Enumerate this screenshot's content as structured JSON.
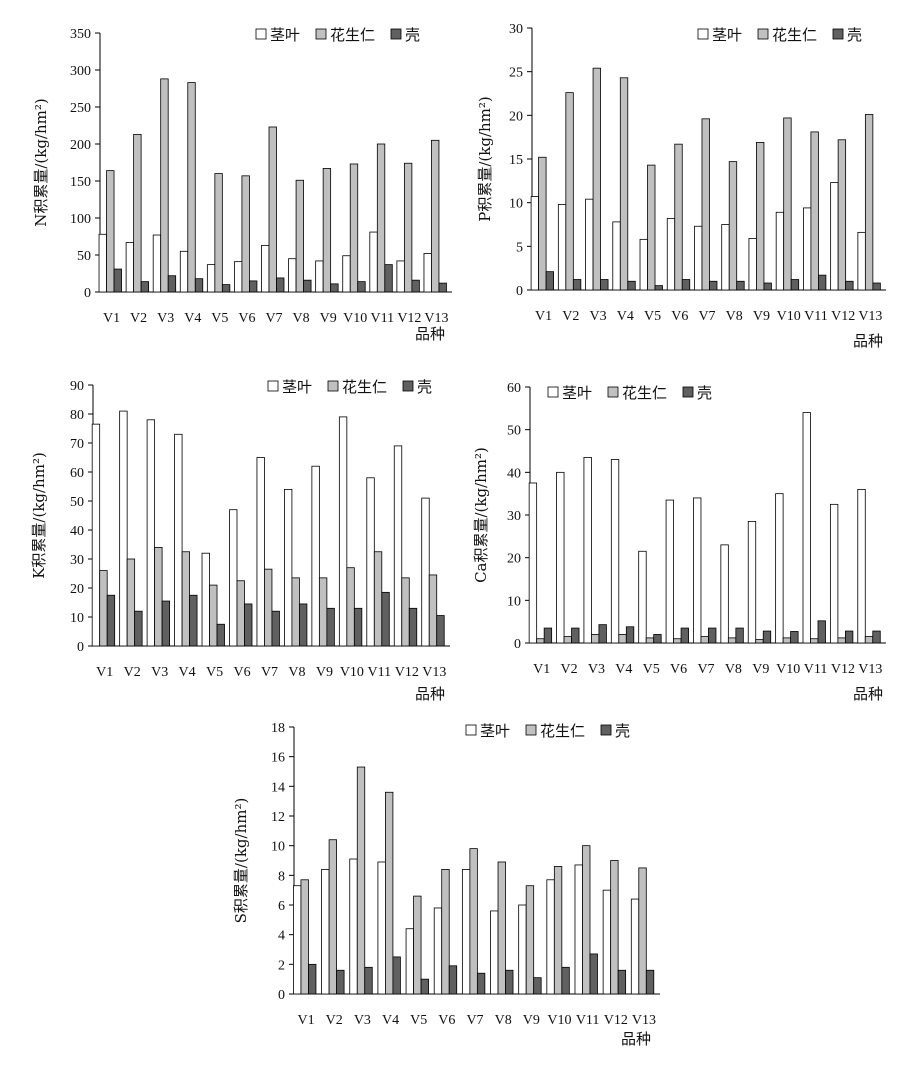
{
  "chart_data": [
    {
      "type": "bar",
      "ylabel": "N积累量/(kg/hm²)",
      "xlabel": "品种",
      "ylim": [
        0,
        350
      ],
      "yticks": [
        0,
        50,
        100,
        150,
        200,
        250,
        300,
        350
      ],
      "categories": [
        "V1",
        "V2",
        "V3",
        "V4",
        "V5",
        "V6",
        "V7",
        "V8",
        "V9",
        "V10",
        "V11",
        "V12",
        "V13"
      ],
      "legend_position": "top-right",
      "series": [
        {
          "name": "茎叶",
          "color": "#ffffff",
          "values": [
            78,
            67,
            77,
            55,
            37,
            41,
            63,
            45,
            42,
            49,
            81,
            42,
            52
          ]
        },
        {
          "name": "花生仁",
          "color": "#c0c0c0",
          "values": [
            164,
            213,
            288,
            283,
            160,
            157,
            223,
            151,
            167,
            173,
            200,
            174,
            205
          ]
        },
        {
          "name": "壳",
          "color": "#606060",
          "values": [
            31,
            14,
            22,
            18,
            10,
            15,
            19,
            16,
            11,
            14,
            37,
            16,
            12
          ]
        }
      ]
    },
    {
      "type": "bar",
      "ylabel": "P积累量/(kg/hm²)",
      "xlabel": "品种",
      "ylim": [
        0,
        30
      ],
      "yticks": [
        0,
        5,
        10,
        15,
        20,
        25,
        30
      ],
      "categories": [
        "V1",
        "V2",
        "V3",
        "V4",
        "V5",
        "V6",
        "V7",
        "V8",
        "V9",
        "V10",
        "V11",
        "V12",
        "V13"
      ],
      "legend_position": "top-right",
      "series": [
        {
          "name": "茎叶",
          "color": "#ffffff",
          "values": [
            10.7,
            9.8,
            10.4,
            7.8,
            5.8,
            8.2,
            7.3,
            7.5,
            5.9,
            8.9,
            9.4,
            12.3,
            6.6
          ]
        },
        {
          "name": "花生仁",
          "color": "#c0c0c0",
          "values": [
            15.2,
            22.6,
            25.4,
            24.3,
            14.3,
            16.7,
            19.6,
            14.7,
            16.9,
            19.7,
            18.1,
            17.2,
            20.1
          ]
        },
        {
          "name": "壳",
          "color": "#606060",
          "values": [
            2.1,
            1.2,
            1.2,
            1.0,
            0.5,
            1.2,
            1.0,
            1.0,
            0.8,
            1.2,
            1.7,
            1.0,
            0.8
          ]
        }
      ]
    },
    {
      "type": "bar",
      "ylabel": "K积累量/(kg/hm²)",
      "xlabel": "品种",
      "ylim": [
        0,
        90
      ],
      "yticks": [
        0,
        10,
        20,
        30,
        40,
        50,
        60,
        70,
        80,
        90
      ],
      "categories": [
        "V1",
        "V2",
        "V3",
        "V4",
        "V5",
        "V6",
        "V7",
        "V8",
        "V9",
        "V10",
        "V11",
        "V12",
        "V13"
      ],
      "legend_position": "top-right",
      "series": [
        {
          "name": "茎叶",
          "color": "#ffffff",
          "values": [
            76.5,
            81,
            78,
            73,
            32,
            47,
            65,
            54,
            62,
            79,
            58,
            69,
            51
          ]
        },
        {
          "name": "花生仁",
          "color": "#c0c0c0",
          "values": [
            26,
            30,
            34,
            32.5,
            21,
            22.5,
            26.5,
            23.5,
            23.5,
            27,
            32.5,
            23.5,
            24.5
          ]
        },
        {
          "name": "壳",
          "color": "#606060",
          "values": [
            17.5,
            12,
            15.5,
            17.5,
            7.5,
            14.5,
            12,
            14.5,
            13,
            13,
            18.5,
            13,
            10.5
          ]
        }
      ]
    },
    {
      "type": "bar",
      "ylabel": "Ca积累量/(kg/hm²)",
      "xlabel": "品种",
      "ylim": [
        0,
        60
      ],
      "yticks": [
        0,
        10,
        20,
        30,
        40,
        50,
        60
      ],
      "categories": [
        "V1",
        "V2",
        "V3",
        "V4",
        "V5",
        "V6",
        "V7",
        "V8",
        "V9",
        "V10",
        "V11",
        "V12",
        "V13"
      ],
      "legend_position": "top-left",
      "series": [
        {
          "name": "茎叶",
          "color": "#ffffff",
          "values": [
            37.5,
            40,
            43.5,
            43,
            21.5,
            33.5,
            34,
            23,
            28.5,
            35,
            54,
            32.5,
            36
          ]
        },
        {
          "name": "花生仁",
          "color": "#c0c0c0",
          "values": [
            1.0,
            1.5,
            2.0,
            2.0,
            1.2,
            1.0,
            1.5,
            1.2,
            0.8,
            1.2,
            1.0,
            1.2,
            1.5
          ]
        },
        {
          "name": "壳",
          "color": "#606060",
          "values": [
            3.5,
            3.5,
            4.3,
            3.8,
            2.0,
            3.5,
            3.5,
            3.5,
            2.8,
            2.7,
            5.2,
            2.8,
            2.8
          ]
        }
      ]
    },
    {
      "type": "bar",
      "ylabel": "S积累量/(kg/hm²)",
      "xlabel": "品种",
      "ylim": [
        0,
        18
      ],
      "yticks": [
        0,
        2,
        4,
        6,
        8,
        10,
        12,
        14,
        16,
        18
      ],
      "categories": [
        "V1",
        "V2",
        "V3",
        "V4",
        "V5",
        "V6",
        "V7",
        "V8",
        "V9",
        "V10",
        "V11",
        "V12",
        "V13"
      ],
      "legend_position": "top-right",
      "series": [
        {
          "name": "茎叶",
          "color": "#ffffff",
          "values": [
            7.3,
            8.4,
            9.1,
            8.9,
            4.4,
            5.8,
            8.4,
            5.6,
            6.0,
            7.7,
            8.7,
            7.0,
            6.4
          ]
        },
        {
          "name": "花生仁",
          "color": "#c0c0c0",
          "values": [
            7.7,
            10.4,
            15.3,
            13.6,
            6.6,
            8.4,
            9.8,
            8.9,
            7.3,
            8.6,
            10.0,
            9.0,
            8.5
          ]
        },
        {
          "name": "壳",
          "color": "#606060",
          "values": [
            2.0,
            1.6,
            1.8,
            2.5,
            1.0,
            1.9,
            1.4,
            1.6,
            1.1,
            1.8,
            2.7,
            1.6,
            1.6
          ]
        }
      ]
    }
  ]
}
